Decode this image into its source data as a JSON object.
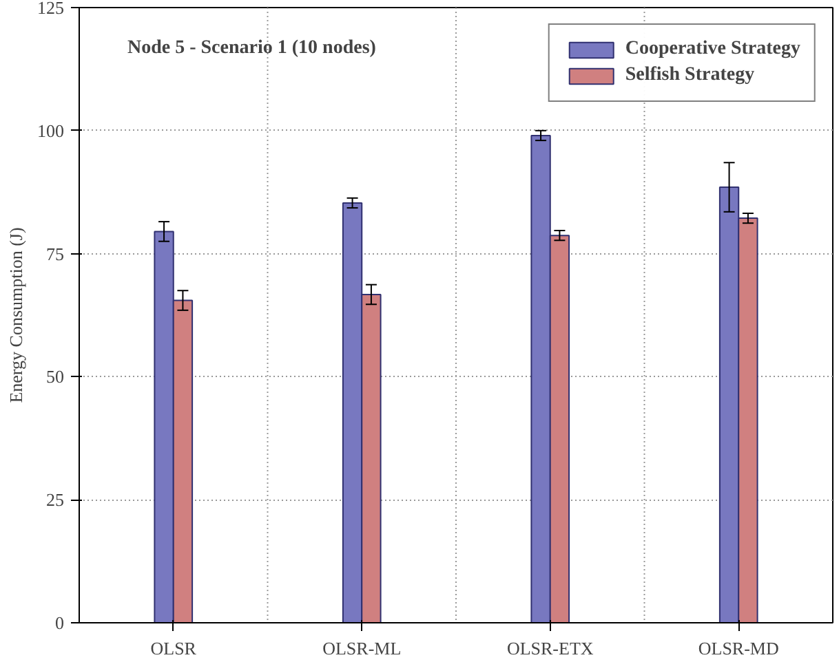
{
  "chart_data": {
    "type": "bar",
    "ylabel": "Energy Consumption (J)",
    "annotations": [
      "Node 5  - Scenario  1 (10 nodes)"
    ],
    "categories": [
      "OLSR",
      "OLSR-ML",
      "OLSR-ETX",
      "OLSR-MD"
    ],
    "series": [
      {
        "name": "Cooperative Strategy",
        "color": "#7878c0",
        "values": [
          79.5,
          85.3,
          99,
          88.5
        ],
        "errors": [
          2,
          1,
          1,
          5
        ]
      },
      {
        "name": "Selfish Strategy",
        "color": "#d08080",
        "values": [
          65.5,
          66.7,
          78.7,
          82.2
        ],
        "errors": [
          2,
          2,
          1,
          1
        ]
      }
    ],
    "ylim": [
      0,
      125
    ],
    "yticks": [
      0,
      25,
      50,
      75,
      100,
      125
    ],
    "grid": true,
    "legend": "top right"
  }
}
